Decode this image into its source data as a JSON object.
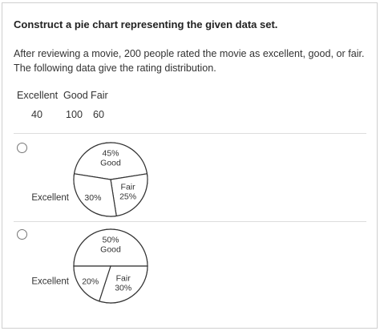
{
  "question": {
    "title": "Construct a pie chart representing the given data set.",
    "intro_line1": "After reviewing a movie, 200 people rated the movie as excellent, good, or fair.",
    "intro_line2": "The following data give the rating distribution.",
    "table": {
      "headers": [
        "Excellent",
        "Good",
        "Fair"
      ],
      "values": [
        "40",
        "100",
        "60"
      ]
    }
  },
  "options": [
    {
      "chart_data": {
        "type": "pie",
        "title": "",
        "slices": [
          {
            "label": "Good",
            "value": 45,
            "text": "45%"
          },
          {
            "label": "Fair",
            "value": 25,
            "text": "25%"
          },
          {
            "label": "Excellent",
            "value": 30,
            "text": "30%"
          }
        ]
      }
    },
    {
      "chart_data": {
        "type": "pie",
        "title": "",
        "slices": [
          {
            "label": "Good",
            "value": 50,
            "text": "50%"
          },
          {
            "label": "Fair",
            "value": 30,
            "text": "30%"
          },
          {
            "label": "Excellent",
            "value": 20,
            "text": "20%"
          }
        ]
      }
    }
  ],
  "colors": {
    "stroke": "#333333",
    "fill": "#ffffff",
    "divider": "#dddddd"
  }
}
